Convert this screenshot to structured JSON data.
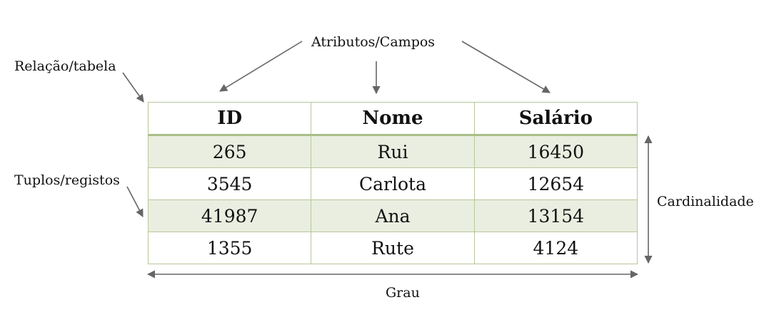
{
  "labels": {
    "attributes": "Atributos/Campos",
    "relation": "Relação/tabela",
    "tuples": "Tuplos/registos",
    "cardinality": "Cardinalidade",
    "degree": "Grau"
  },
  "table": {
    "headers": [
      "ID",
      "Nome",
      "Salário"
    ],
    "rows": [
      [
        "265",
        "Rui",
        "16450"
      ],
      [
        "3545",
        "Carlota",
        "12654"
      ],
      [
        "41987",
        "Ana",
        "13154"
      ],
      [
        "1355",
        "Rute",
        "4124"
      ]
    ]
  },
  "colors": {
    "border": "#b7c79a",
    "row_shade": "#e9eee0",
    "arrow": "#666666"
  }
}
